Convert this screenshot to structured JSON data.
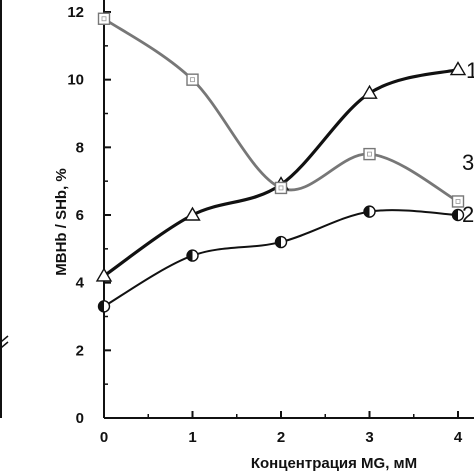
{
  "chart_data": {
    "type": "line",
    "xlabel": "Концентрация MG, мМ",
    "ylabel": "MBHb / SHb, %",
    "xlim": [
      0,
      4
    ],
    "ylim": [
      0,
      12
    ],
    "xticks": [
      "0",
      "1",
      "2",
      "3",
      "4"
    ],
    "yticks": [
      "0",
      "2",
      "4",
      "6",
      "8",
      "10",
      "12"
    ],
    "grid": false,
    "series": [
      {
        "name": "1",
        "marker": "triangle",
        "color": "#111111",
        "x": [
          0,
          1,
          2,
          3,
          4
        ],
        "y": [
          4.2,
          6.0,
          6.9,
          9.6,
          10.3
        ]
      },
      {
        "name": "2",
        "marker": "half-filled-circle",
        "color": "#111111",
        "x": [
          0,
          1,
          2,
          3,
          4
        ],
        "y": [
          3.3,
          4.8,
          5.2,
          6.1,
          6.0
        ]
      },
      {
        "name": "3",
        "marker": "square",
        "color": "#777777",
        "x": [
          0,
          1,
          2,
          3,
          4
        ],
        "y": [
          11.8,
          10.0,
          6.8,
          7.8,
          6.4
        ]
      }
    ]
  }
}
